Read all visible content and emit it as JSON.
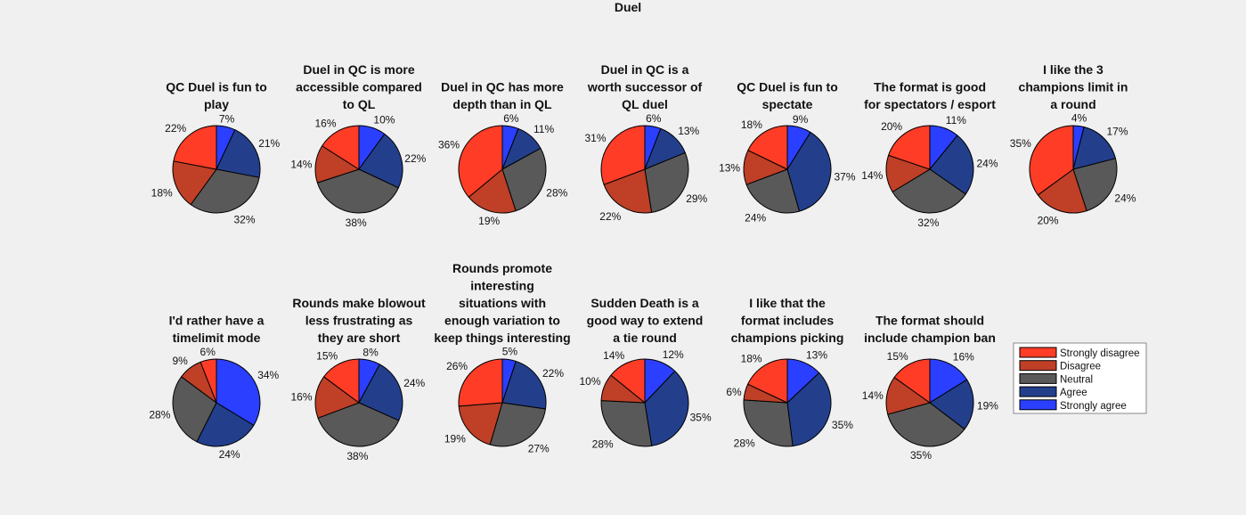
{
  "chart_data": {
    "type": "pie",
    "title": "Duel",
    "legend": {
      "placement": "right",
      "entries": [
        "Strongly disagree",
        "Disagree",
        "Neutral",
        "Agree",
        "Strongly agree"
      ],
      "colors": [
        "#ff3d26",
        "#bf3f27",
        "#595959",
        "#233f8c",
        "#2a3fff"
      ]
    },
    "charts": [
      {
        "title": [
          "QC Duel is fun to",
          "play"
        ],
        "values": [
          22,
          18,
          32,
          21,
          7
        ]
      },
      {
        "title": [
          "Duel in QC is more",
          "accessible compared",
          "to QL"
        ],
        "values": [
          16,
          14,
          38,
          22,
          10
        ]
      },
      {
        "title": [
          "Duel in QC has more",
          "depth than in QL"
        ],
        "values": [
          36,
          19,
          28,
          11,
          6
        ]
      },
      {
        "title": [
          "Duel in QC is a",
          "worth successor of",
          "QL duel"
        ],
        "values": [
          31,
          22,
          29,
          13,
          6
        ]
      },
      {
        "title": [
          "QC Duel is fun to",
          "spectate"
        ],
        "values": [
          18,
          13,
          24,
          37,
          9
        ]
      },
      {
        "title": [
          "The format is good",
          "for spectators / esport"
        ],
        "values": [
          20,
          14,
          32,
          24,
          11
        ]
      },
      {
        "title": [
          "I like the 3",
          "champions limit in",
          "a round"
        ],
        "values": [
          35,
          20,
          24,
          17,
          4
        ]
      },
      {
        "title": [
          "I'd rather have a",
          "timelimit mode"
        ],
        "values": [
          6,
          9,
          28,
          24,
          34
        ]
      },
      {
        "title": [
          "Rounds make blowout",
          "less frustrating as",
          "they are short"
        ],
        "values": [
          15,
          16,
          38,
          24,
          8
        ]
      },
      {
        "title": [
          "Rounds promote",
          "interesting",
          "situations with",
          "enough variation to",
          "keep things interesting"
        ],
        "values": [
          26,
          19,
          27,
          22,
          5
        ]
      },
      {
        "title": [
          "Sudden Death is a",
          "good way to extend",
          "a tie round"
        ],
        "values": [
          14,
          10,
          28,
          35,
          12
        ]
      },
      {
        "title": [
          "I like that the",
          "format includes",
          "champions picking"
        ],
        "values": [
          18,
          6,
          28,
          35,
          13
        ]
      },
      {
        "title": [
          "The format should",
          "include champion ban"
        ],
        "values": [
          15,
          14,
          35,
          19,
          16
        ]
      }
    ]
  }
}
